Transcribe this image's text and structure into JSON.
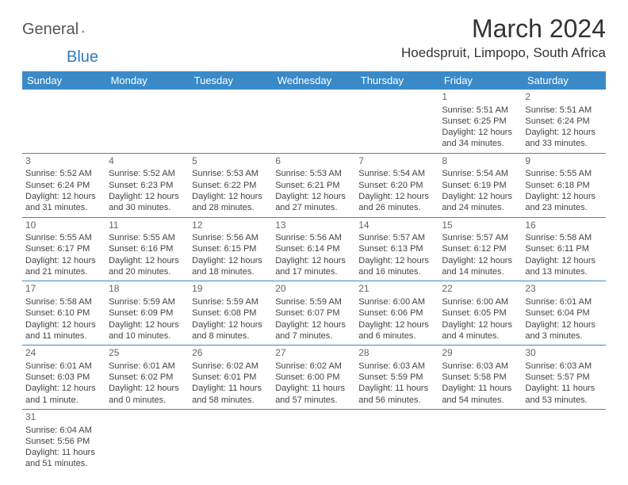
{
  "logo": {
    "text1": "General",
    "text2": "Blue"
  },
  "title": "March 2024",
  "location": "Hoedspruit, Limpopo, South Africa",
  "colors": {
    "header_bg": "#3a8ac8",
    "header_text": "#ffffff",
    "border": "#3a8ac8",
    "body_text": "#444444",
    "daynum": "#666666",
    "logo_gray": "#555555",
    "logo_blue": "#2f7bbf"
  },
  "weekdays": [
    "Sunday",
    "Monday",
    "Tuesday",
    "Wednesday",
    "Thursday",
    "Friday",
    "Saturday"
  ],
  "weeks": [
    [
      null,
      null,
      null,
      null,
      null,
      {
        "n": "1",
        "sr": "Sunrise: 5:51 AM",
        "ss": "Sunset: 6:25 PM",
        "d1": "Daylight: 12 hours",
        "d2": "and 34 minutes."
      },
      {
        "n": "2",
        "sr": "Sunrise: 5:51 AM",
        "ss": "Sunset: 6:24 PM",
        "d1": "Daylight: 12 hours",
        "d2": "and 33 minutes."
      }
    ],
    [
      {
        "n": "3",
        "sr": "Sunrise: 5:52 AM",
        "ss": "Sunset: 6:24 PM",
        "d1": "Daylight: 12 hours",
        "d2": "and 31 minutes."
      },
      {
        "n": "4",
        "sr": "Sunrise: 5:52 AM",
        "ss": "Sunset: 6:23 PM",
        "d1": "Daylight: 12 hours",
        "d2": "and 30 minutes."
      },
      {
        "n": "5",
        "sr": "Sunrise: 5:53 AM",
        "ss": "Sunset: 6:22 PM",
        "d1": "Daylight: 12 hours",
        "d2": "and 28 minutes."
      },
      {
        "n": "6",
        "sr": "Sunrise: 5:53 AM",
        "ss": "Sunset: 6:21 PM",
        "d1": "Daylight: 12 hours",
        "d2": "and 27 minutes."
      },
      {
        "n": "7",
        "sr": "Sunrise: 5:54 AM",
        "ss": "Sunset: 6:20 PM",
        "d1": "Daylight: 12 hours",
        "d2": "and 26 minutes."
      },
      {
        "n": "8",
        "sr": "Sunrise: 5:54 AM",
        "ss": "Sunset: 6:19 PM",
        "d1": "Daylight: 12 hours",
        "d2": "and 24 minutes."
      },
      {
        "n": "9",
        "sr": "Sunrise: 5:55 AM",
        "ss": "Sunset: 6:18 PM",
        "d1": "Daylight: 12 hours",
        "d2": "and 23 minutes."
      }
    ],
    [
      {
        "n": "10",
        "sr": "Sunrise: 5:55 AM",
        "ss": "Sunset: 6:17 PM",
        "d1": "Daylight: 12 hours",
        "d2": "and 21 minutes."
      },
      {
        "n": "11",
        "sr": "Sunrise: 5:55 AM",
        "ss": "Sunset: 6:16 PM",
        "d1": "Daylight: 12 hours",
        "d2": "and 20 minutes."
      },
      {
        "n": "12",
        "sr": "Sunrise: 5:56 AM",
        "ss": "Sunset: 6:15 PM",
        "d1": "Daylight: 12 hours",
        "d2": "and 18 minutes."
      },
      {
        "n": "13",
        "sr": "Sunrise: 5:56 AM",
        "ss": "Sunset: 6:14 PM",
        "d1": "Daylight: 12 hours",
        "d2": "and 17 minutes."
      },
      {
        "n": "14",
        "sr": "Sunrise: 5:57 AM",
        "ss": "Sunset: 6:13 PM",
        "d1": "Daylight: 12 hours",
        "d2": "and 16 minutes."
      },
      {
        "n": "15",
        "sr": "Sunrise: 5:57 AM",
        "ss": "Sunset: 6:12 PM",
        "d1": "Daylight: 12 hours",
        "d2": "and 14 minutes."
      },
      {
        "n": "16",
        "sr": "Sunrise: 5:58 AM",
        "ss": "Sunset: 6:11 PM",
        "d1": "Daylight: 12 hours",
        "d2": "and 13 minutes."
      }
    ],
    [
      {
        "n": "17",
        "sr": "Sunrise: 5:58 AM",
        "ss": "Sunset: 6:10 PM",
        "d1": "Daylight: 12 hours",
        "d2": "and 11 minutes."
      },
      {
        "n": "18",
        "sr": "Sunrise: 5:59 AM",
        "ss": "Sunset: 6:09 PM",
        "d1": "Daylight: 12 hours",
        "d2": "and 10 minutes."
      },
      {
        "n": "19",
        "sr": "Sunrise: 5:59 AM",
        "ss": "Sunset: 6:08 PM",
        "d1": "Daylight: 12 hours",
        "d2": "and 8 minutes."
      },
      {
        "n": "20",
        "sr": "Sunrise: 5:59 AM",
        "ss": "Sunset: 6:07 PM",
        "d1": "Daylight: 12 hours",
        "d2": "and 7 minutes."
      },
      {
        "n": "21",
        "sr": "Sunrise: 6:00 AM",
        "ss": "Sunset: 6:06 PM",
        "d1": "Daylight: 12 hours",
        "d2": "and 6 minutes."
      },
      {
        "n": "22",
        "sr": "Sunrise: 6:00 AM",
        "ss": "Sunset: 6:05 PM",
        "d1": "Daylight: 12 hours",
        "d2": "and 4 minutes."
      },
      {
        "n": "23",
        "sr": "Sunrise: 6:01 AM",
        "ss": "Sunset: 6:04 PM",
        "d1": "Daylight: 12 hours",
        "d2": "and 3 minutes."
      }
    ],
    [
      {
        "n": "24",
        "sr": "Sunrise: 6:01 AM",
        "ss": "Sunset: 6:03 PM",
        "d1": "Daylight: 12 hours",
        "d2": "and 1 minute."
      },
      {
        "n": "25",
        "sr": "Sunrise: 6:01 AM",
        "ss": "Sunset: 6:02 PM",
        "d1": "Daylight: 12 hours",
        "d2": "and 0 minutes."
      },
      {
        "n": "26",
        "sr": "Sunrise: 6:02 AM",
        "ss": "Sunset: 6:01 PM",
        "d1": "Daylight: 11 hours",
        "d2": "and 58 minutes."
      },
      {
        "n": "27",
        "sr": "Sunrise: 6:02 AM",
        "ss": "Sunset: 6:00 PM",
        "d1": "Daylight: 11 hours",
        "d2": "and 57 minutes."
      },
      {
        "n": "28",
        "sr": "Sunrise: 6:03 AM",
        "ss": "Sunset: 5:59 PM",
        "d1": "Daylight: 11 hours",
        "d2": "and 56 minutes."
      },
      {
        "n": "29",
        "sr": "Sunrise: 6:03 AM",
        "ss": "Sunset: 5:58 PM",
        "d1": "Daylight: 11 hours",
        "d2": "and 54 minutes."
      },
      {
        "n": "30",
        "sr": "Sunrise: 6:03 AM",
        "ss": "Sunset: 5:57 PM",
        "d1": "Daylight: 11 hours",
        "d2": "and 53 minutes."
      }
    ],
    [
      {
        "n": "31",
        "sr": "Sunrise: 6:04 AM",
        "ss": "Sunset: 5:56 PM",
        "d1": "Daylight: 11 hours",
        "d2": "and 51 minutes."
      },
      null,
      null,
      null,
      null,
      null,
      null
    ]
  ]
}
